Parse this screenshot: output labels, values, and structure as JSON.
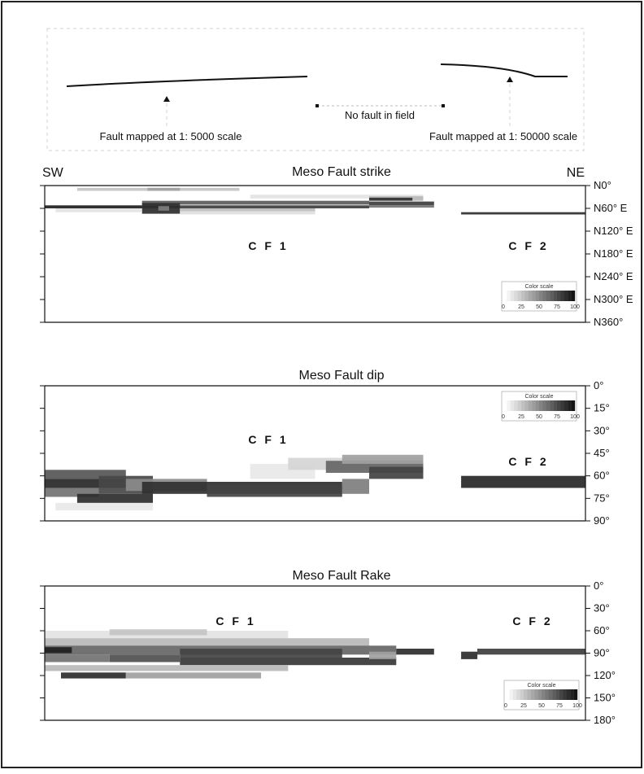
{
  "header": {
    "sw": "SW",
    "ne": "NE",
    "left_caption": "Fault mapped at 1: 5000 scale",
    "middle_caption": "No fault in field",
    "right_caption": "Fault mapped at 1: 50000 scale"
  },
  "color_scale": {
    "title": "Color scale",
    "ticks": [
      "0",
      "25",
      "50",
      "75",
      "100"
    ]
  },
  "chart_data": [
    {
      "type": "heatmap",
      "title": "Meso Fault strike",
      "labels": [
        "C F 1",
        "C F 2"
      ],
      "y_ticks": [
        "N0°",
        "N60° E",
        "N120° E",
        "N180° E",
        "N240° E",
        "N300° E",
        "N360°"
      ],
      "ylim": [
        0,
        360
      ],
      "grid": false,
      "legend": "bottom-right",
      "cells": [
        {
          "x0": 0.06,
          "x1": 0.36,
          "y0": 6,
          "y1": 14,
          "v": 25
        },
        {
          "x0": 0.19,
          "x1": 0.25,
          "y0": 6,
          "y1": 14,
          "v": 40
        },
        {
          "x0": 0.38,
          "x1": 0.7,
          "y0": 24,
          "y1": 34,
          "v": 12
        },
        {
          "x0": 0.6,
          "x1": 0.7,
          "y0": 28,
          "y1": 40,
          "v": 30
        },
        {
          "x0": 0.6,
          "x1": 0.68,
          "y0": 32,
          "y1": 40,
          "v": 88
        },
        {
          "x0": 0.18,
          "x1": 0.6,
          "y0": 40,
          "y1": 50,
          "v": 70
        },
        {
          "x0": 0.6,
          "x1": 0.72,
          "y0": 42,
          "y1": 52,
          "v": 82
        },
        {
          "x0": 0.0,
          "x1": 0.18,
          "y0": 52,
          "y1": 60,
          "v": 95
        },
        {
          "x0": 0.18,
          "x1": 0.6,
          "y0": 52,
          "y1": 60,
          "v": 82
        },
        {
          "x0": 0.6,
          "x1": 0.72,
          "y0": 52,
          "y1": 58,
          "v": 60
        },
        {
          "x0": 0.18,
          "x1": 0.25,
          "y0": 46,
          "y1": 74,
          "v": 90
        },
        {
          "x0": 0.21,
          "x1": 0.23,
          "y0": 54,
          "y1": 66,
          "v": 55
        },
        {
          "x0": 0.25,
          "x1": 0.5,
          "y0": 60,
          "y1": 68,
          "v": 28
        },
        {
          "x0": 0.02,
          "x1": 0.18,
          "y0": 60,
          "y1": 70,
          "v": 12
        },
        {
          "x0": 0.25,
          "x1": 0.5,
          "y0": 68,
          "y1": 76,
          "v": 14
        },
        {
          "x0": 0.77,
          "x1": 1.0,
          "y0": 70,
          "y1": 76,
          "v": 90
        }
      ]
    },
    {
      "type": "heatmap",
      "title": "Meso Fault dip",
      "labels": [
        "C F 1",
        "C F 2"
      ],
      "y_ticks": [
        "0°",
        "15°",
        "30°",
        "45°",
        "60°",
        "75°",
        "90°"
      ],
      "ylim": [
        0,
        90
      ],
      "grid": false,
      "legend": "top-right",
      "cells": [
        {
          "x0": 0.38,
          "x1": 0.5,
          "y0": 52,
          "y1": 62,
          "v": 10
        },
        {
          "x0": 0.45,
          "x1": 0.7,
          "y0": 48,
          "y1": 56,
          "v": 18
        },
        {
          "x0": 0.52,
          "x1": 0.7,
          "y0": 50,
          "y1": 58,
          "v": 65
        },
        {
          "x0": 0.55,
          "x1": 0.7,
          "y0": 46,
          "y1": 52,
          "v": 40
        },
        {
          "x0": 0.6,
          "x1": 0.7,
          "y0": 54,
          "y1": 62,
          "v": 80
        },
        {
          "x0": 0.0,
          "x1": 0.15,
          "y0": 56,
          "y1": 62,
          "v": 72
        },
        {
          "x0": 0.0,
          "x1": 0.15,
          "y0": 62,
          "y1": 68,
          "v": 92
        },
        {
          "x0": 0.1,
          "x1": 0.2,
          "y0": 60,
          "y1": 72,
          "v": 78
        },
        {
          "x0": 0.15,
          "x1": 0.3,
          "y0": 62,
          "y1": 70,
          "v": 50
        },
        {
          "x0": 0.0,
          "x1": 0.1,
          "y0": 68,
          "y1": 74,
          "v": 60
        },
        {
          "x0": 0.18,
          "x1": 0.55,
          "y0": 64,
          "y1": 72,
          "v": 88
        },
        {
          "x0": 0.3,
          "x1": 0.55,
          "y0": 66,
          "y1": 74,
          "v": 80
        },
        {
          "x0": 0.55,
          "x1": 0.6,
          "y0": 62,
          "y1": 72,
          "v": 55
        },
        {
          "x0": 0.06,
          "x1": 0.2,
          "y0": 72,
          "y1": 78,
          "v": 90
        },
        {
          "x0": 0.02,
          "x1": 0.2,
          "y0": 78,
          "y1": 83,
          "v": 10
        },
        {
          "x0": 0.77,
          "x1": 1.0,
          "y0": 60,
          "y1": 68,
          "v": 92
        }
      ]
    },
    {
      "type": "heatmap",
      "title": "Meso Fault Rake",
      "labels": [
        "C F 1",
        "C F 2"
      ],
      "y_ticks": [
        "0°",
        "30°",
        "60°",
        "90°",
        "120°",
        "150°",
        "180°"
      ],
      "ylim": [
        0,
        180
      ],
      "grid": false,
      "legend": "bottom-right",
      "cells": [
        {
          "x0": 0.0,
          "x1": 0.45,
          "y0": 60,
          "y1": 70,
          "v": 12
        },
        {
          "x0": 0.12,
          "x1": 0.3,
          "y0": 58,
          "y1": 66,
          "v": 25
        },
        {
          "x0": 0.0,
          "x1": 0.6,
          "y0": 70,
          "y1": 80,
          "v": 30
        },
        {
          "x0": 0.0,
          "x1": 0.65,
          "y0": 80,
          "y1": 92,
          "v": 65
        },
        {
          "x0": 0.25,
          "x1": 0.55,
          "y0": 84,
          "y1": 96,
          "v": 80
        },
        {
          "x0": 0.0,
          "x1": 0.05,
          "y0": 82,
          "y1": 90,
          "v": 95
        },
        {
          "x0": 0.0,
          "x1": 0.12,
          "y0": 92,
          "y1": 102,
          "v": 60
        },
        {
          "x0": 0.12,
          "x1": 0.25,
          "y0": 92,
          "y1": 102,
          "v": 75
        },
        {
          "x0": 0.25,
          "x1": 0.65,
          "y0": 96,
          "y1": 106,
          "v": 85
        },
        {
          "x0": 0.0,
          "x1": 0.45,
          "y0": 106,
          "y1": 114,
          "v": 30
        },
        {
          "x0": 0.03,
          "x1": 0.15,
          "y0": 116,
          "y1": 124,
          "v": 90
        },
        {
          "x0": 0.15,
          "x1": 0.4,
          "y0": 116,
          "y1": 124,
          "v": 40
        },
        {
          "x0": 0.6,
          "x1": 0.65,
          "y0": 88,
          "y1": 98,
          "v": 40
        },
        {
          "x0": 0.65,
          "x1": 0.72,
          "y0": 84,
          "y1": 92,
          "v": 90
        },
        {
          "x0": 0.77,
          "x1": 0.8,
          "y0": 88,
          "y1": 98,
          "v": 90
        },
        {
          "x0": 0.8,
          "x1": 1.0,
          "y0": 84,
          "y1": 92,
          "v": 82
        }
      ]
    }
  ]
}
